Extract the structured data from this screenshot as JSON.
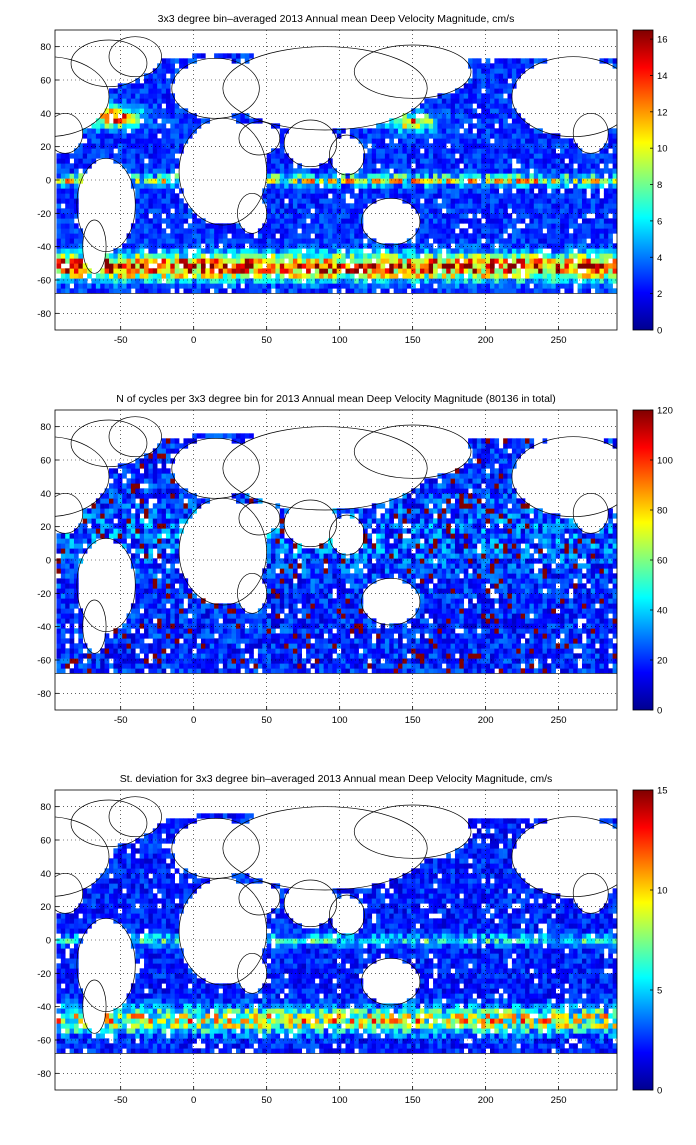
{
  "chart_data": [
    {
      "type": "heatmap",
      "title": "3x3 degree bin–averaged 2013 Annual mean Deep Velocity Magnitude, cm/s",
      "xlabel": "",
      "ylabel": "",
      "xlim": [
        -95,
        290
      ],
      "ylim": [
        -90,
        90
      ],
      "xticks": [
        -50,
        0,
        50,
        100,
        150,
        200,
        250
      ],
      "yticks": [
        -80,
        -60,
        -40,
        -20,
        0,
        20,
        40,
        60,
        80
      ],
      "grid": "dotted",
      "colorbar": {
        "min": 0,
        "max": 16.5,
        "ticks": [
          0,
          2,
          4,
          6,
          8,
          10,
          12,
          14,
          16
        ],
        "colormap": "jet"
      },
      "pattern": "velocity"
    },
    {
      "type": "heatmap",
      "title": "N of cycles per 3x3 degree bin for 2013 Annual mean Deep Velocity Magnitude (80136 in total)",
      "xlabel": "",
      "ylabel": "",
      "xlim": [
        -95,
        290
      ],
      "ylim": [
        -90,
        90
      ],
      "xticks": [
        -50,
        0,
        50,
        100,
        150,
        200,
        250
      ],
      "yticks": [
        -80,
        -60,
        -40,
        -20,
        0,
        20,
        40,
        60,
        80
      ],
      "grid": "dotted",
      "colorbar": {
        "min": 0,
        "max": 120,
        "ticks": [
          0,
          20,
          40,
          60,
          80,
          100,
          120
        ],
        "colormap": "jet"
      },
      "pattern": "cycles"
    },
    {
      "type": "heatmap",
      "title": "St. deviation for 3x3 degree bin–averaged 2013 Annual mean Deep Velocity Magnitude, cm/s",
      "xlabel": "",
      "ylabel": "",
      "xlim": [
        -95,
        290
      ],
      "ylim": [
        -90,
        90
      ],
      "xticks": [
        -50,
        0,
        50,
        100,
        150,
        200,
        250
      ],
      "yticks": [
        -80,
        -60,
        -40,
        -20,
        0,
        20,
        40,
        60,
        80
      ],
      "grid": "dotted",
      "colorbar": {
        "min": 0,
        "max": 15,
        "ticks": [
          0,
          5,
          10,
          15
        ],
        "colormap": "jet"
      },
      "pattern": "stdev"
    }
  ]
}
